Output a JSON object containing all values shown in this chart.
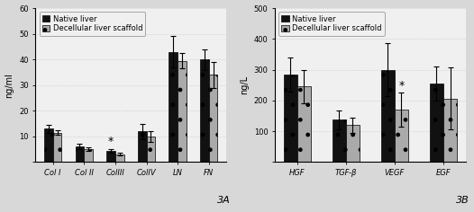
{
  "chart_A": {
    "categories": [
      "Col I",
      "Col II",
      "ColIII",
      "ColIV",
      "LN",
      "FN"
    ],
    "native": [
      13,
      6,
      4.5,
      12,
      43,
      40
    ],
    "decellular": [
      11.5,
      5,
      3,
      10,
      39.5,
      34
    ],
    "native_err": [
      1.5,
      1,
      0.7,
      3,
      6,
      4
    ],
    "decellular_err": [
      1,
      0.8,
      0.5,
      2,
      3,
      5
    ],
    "star_idx": 2,
    "star_on_native": true,
    "ylabel": "ng/ml",
    "ylim": [
      0,
      60
    ],
    "yticks": [
      0,
      10,
      20,
      30,
      40,
      50,
      60
    ],
    "label": "3A"
  },
  "chart_B": {
    "categories": [
      "HGF",
      "TGF-β",
      "VEGF",
      "EGF"
    ],
    "native": [
      285,
      137,
      300,
      255
    ],
    "decellular": [
      245,
      120,
      170,
      207
    ],
    "native_err": [
      55,
      30,
      85,
      55
    ],
    "decellular_err": [
      55,
      25,
      55,
      100
    ],
    "star_idx": 2,
    "star_on_native": false,
    "ylabel": "ng/L",
    "ylim": [
      0,
      500
    ],
    "yticks": [
      0,
      100,
      200,
      300,
      400,
      500
    ],
    "label": "3B"
  },
  "legend_labels": [
    "Native liver",
    "Decellular liver scaffold"
  ],
  "bar_color_native": "#111111",
  "bar_color_decel": "#aaaaaa",
  "bg_color": "#d8d8d8",
  "plot_bg": "#f0f0f0",
  "fontsize_tick": 6,
  "fontsize_label": 7,
  "fontsize_legend": 6,
  "fontsize_star": 9,
  "fontsize_label3": 8,
  "bar_width": 0.28,
  "grid_color": "#cc99cc",
  "grid_alpha": 0.6
}
